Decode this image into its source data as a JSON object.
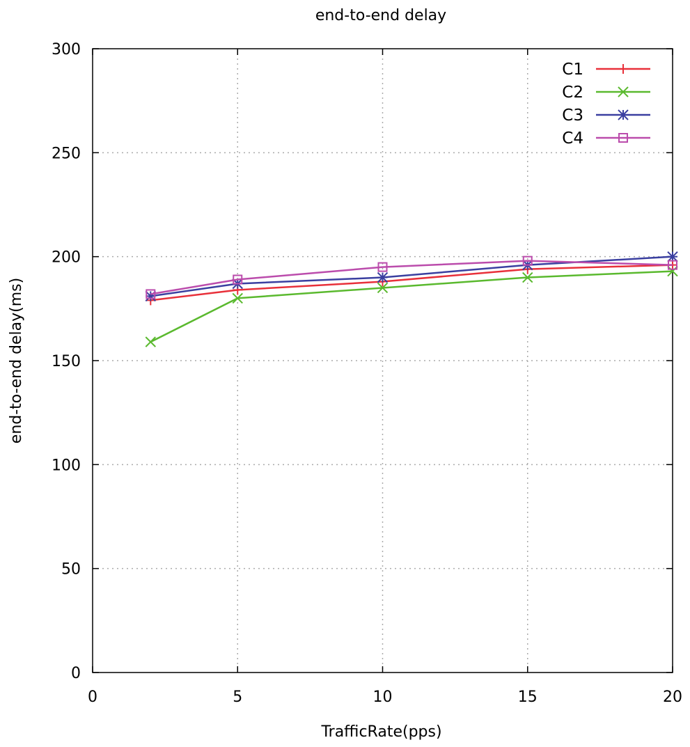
{
  "chart_data": {
    "type": "line",
    "title": "end-to-end delay",
    "xlabel": "TrafficRate(pps)",
    "ylabel": "end-to-end delay(ms)",
    "xlim": [
      0,
      20
    ],
    "ylim": [
      0,
      300
    ],
    "xticks": [
      0,
      5,
      10,
      15,
      20
    ],
    "yticks": [
      0,
      50,
      100,
      150,
      200,
      250,
      300
    ],
    "grid": true,
    "legend_position": "top-right",
    "x": [
      2,
      5,
      10,
      15,
      20
    ],
    "series": [
      {
        "name": "C1",
        "color": "#e8303a",
        "marker": "plus",
        "values": [
          179,
          184,
          188,
          194,
          196
        ]
      },
      {
        "name": "C2",
        "color": "#5ab92e",
        "marker": "cross",
        "values": [
          159,
          180,
          185,
          190,
          193
        ]
      },
      {
        "name": "C3",
        "color": "#3a3fa0",
        "marker": "star",
        "values": [
          181,
          187,
          190,
          196,
          200
        ]
      },
      {
        "name": "C4",
        "color": "#bb4cac",
        "marker": "square",
        "values": [
          182,
          189,
          195,
          198,
          196
        ]
      }
    ]
  }
}
